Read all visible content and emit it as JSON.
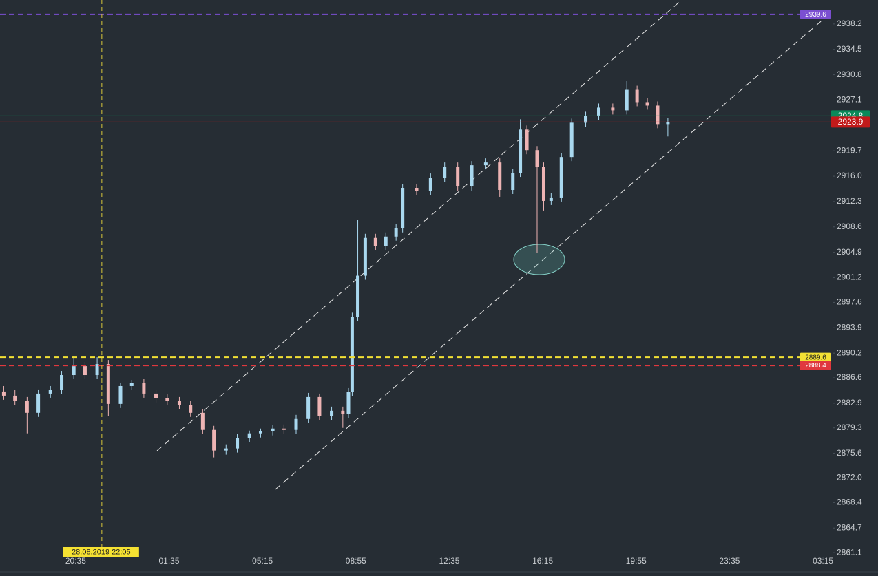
{
  "chart_data": {
    "type": "candlestick",
    "x": [
      -0.77,
      -0.65,
      -0.52,
      -0.4,
      -0.27,
      -0.15,
      -0.02,
      0.1,
      0.23,
      0.35,
      0.48,
      0.6,
      0.73,
      0.86,
      0.98,
      1.11,
      1.23,
      1.36,
      1.48,
      1.61,
      1.73,
      1.86,
      1.98,
      2.11,
      2.23,
      2.36,
      2.49,
      2.61,
      2.74,
      2.86,
      2.92,
      2.96,
      3.02,
      3.1,
      3.21,
      3.32,
      3.43,
      3.5,
      3.65,
      3.8,
      3.95,
      4.09,
      4.24,
      4.39,
      4.54,
      4.68,
      4.76,
      4.83,
      4.94,
      5.01,
      5.09,
      5.2,
      5.31,
      5.46,
      5.6,
      5.75,
      5.9,
      6.01,
      6.12,
      6.23,
      6.34
    ],
    "open": [
      2884.6,
      2884.0,
      2883.2,
      2881.5,
      2884.3,
      2884.8,
      2887.0,
      2888.3,
      2887.0,
      2888.6,
      2882.8,
      2885.4,
      2885.8,
      2884.3,
      2883.6,
      2883.2,
      2882.6,
      2881.5,
      2879.0,
      2876.0,
      2876.3,
      2877.8,
      2878.5,
      2878.8,
      2879.2,
      2879.0,
      2880.6,
      2883.8,
      2881.0,
      2881.8,
      2881.3,
      2884.5,
      2895.5,
      2901.5,
      2907.0,
      2905.8,
      2907.2,
      2908.4,
      2914.3,
      2913.8,
      2915.8,
      2917.4,
      2914.5,
      2917.6,
      2918.0,
      2914.0,
      2916.5,
      2922.8,
      2919.8,
      2917.4,
      2912.4,
      2912.9,
      2918.8,
      2923.8,
      2924.8,
      2926.0,
      2925.6,
      2928.6,
      2926.8,
      2926.3,
      2923.6
    ],
    "high": [
      2885.4,
      2884.8,
      2883.8,
      2884.9,
      2885.4,
      2887.6,
      2889.8,
      2888.9,
      2889.6,
      2889.2,
      2885.9,
      2886.3,
      2886.4,
      2884.9,
      2884.2,
      2883.8,
      2883.2,
      2882.0,
      2879.6,
      2876.9,
      2878.4,
      2878.9,
      2879.2,
      2879.7,
      2879.8,
      2881.2,
      2884.4,
      2884.3,
      2882.4,
      2882.4,
      2885.1,
      2896.1,
      2909.6,
      2907.6,
      2907.6,
      2907.8,
      2909.0,
      2914.9,
      2914.9,
      2916.4,
      2918.0,
      2918.0,
      2918.2,
      2918.6,
      2918.6,
      2917.1,
      2924.3,
      2923.4,
      2920.4,
      2918.0,
      2913.5,
      2919.4,
      2924.4,
      2925.4,
      2926.6,
      2926.6,
      2929.9,
      2929.2,
      2927.4,
      2926.9,
      2924.5
    ],
    "low": [
      2883.4,
      2882.6,
      2878.5,
      2880.9,
      2883.7,
      2884.2,
      2886.4,
      2886.4,
      2886.4,
      2881.0,
      2882.2,
      2884.8,
      2883.7,
      2883.0,
      2882.6,
      2882.0,
      2880.9,
      2878.4,
      2875.0,
      2875.4,
      2875.7,
      2877.2,
      2877.9,
      2878.2,
      2878.4,
      2878.4,
      2880.0,
      2880.4,
      2880.4,
      2879.3,
      2880.7,
      2883.9,
      2894.9,
      2900.9,
      2905.2,
      2905.2,
      2906.6,
      2907.8,
      2913.2,
      2913.2,
      2915.2,
      2913.9,
      2913.9,
      2917.0,
      2913.0,
      2913.4,
      2915.9,
      2919.2,
      2904.8,
      2911.0,
      2911.8,
      2912.3,
      2918.2,
      2923.2,
      2924.2,
      2925.0,
      2925.0,
      2926.2,
      2925.7,
      2923.0,
      2921.8
    ],
    "close": [
      2884.0,
      2883.2,
      2881.5,
      2884.3,
      2884.8,
      2887.0,
      2888.3,
      2887.0,
      2888.6,
      2882.8,
      2885.4,
      2885.8,
      2884.3,
      2883.6,
      2883.2,
      2882.6,
      2881.5,
      2879.0,
      2876.0,
      2876.3,
      2877.8,
      2878.5,
      2878.8,
      2879.2,
      2879.0,
      2880.6,
      2883.8,
      2881.0,
      2881.8,
      2881.3,
      2884.5,
      2895.5,
      2901.5,
      2907.0,
      2905.8,
      2907.2,
      2908.4,
      2914.3,
      2913.8,
      2915.8,
      2917.4,
      2914.5,
      2917.6,
      2918.0,
      2914.0,
      2916.5,
      2922.8,
      2919.8,
      2917.4,
      2912.4,
      2912.9,
      2918.8,
      2923.8,
      2924.8,
      2926.0,
      2925.6,
      2928.6,
      2926.8,
      2926.3,
      2923.6,
      2923.9
    ],
    "up_color": "#a9d8ef",
    "down_color": "#eeb4b4",
    "xlim": [
      -0.81,
      8.11
    ],
    "xticks": [
      {
        "value": 0,
        "label": "20:35"
      },
      {
        "value": 1,
        "label": "01:35"
      },
      {
        "value": 2,
        "label": "05:15"
      },
      {
        "value": 3,
        "label": "08:55"
      },
      {
        "value": 4,
        "label": "12:35"
      },
      {
        "value": 5,
        "label": "16:15"
      },
      {
        "value": 6,
        "label": "19:55"
      },
      {
        "value": 7,
        "label": "23:35"
      },
      {
        "value": 8,
        "label": "03:15"
      }
    ],
    "ylim": [
      2858.7,
      2941.7
    ],
    "yticks": [
      2938.2,
      2934.5,
      2930.8,
      2927.1,
      2919.7,
      {
        "value": 2916.0,
        "label": "2916.0"
      },
      2912.3,
      2908.6,
      2904.9,
      2901.2,
      2897.6,
      2893.9,
      2890.2,
      2886.6,
      2882.9,
      2879.3,
      2875.6,
      {
        "value": 2872.0,
        "label": "2872.0"
      },
      2868.4,
      2864.7,
      2861.1
    ],
    "price_lines": [
      {
        "value": 2939.6,
        "color": "#7b4fd1",
        "style": "dashed"
      },
      {
        "value": 2924.8,
        "color": "#0a8a5a",
        "style": "solid"
      },
      {
        "value": 2923.9,
        "color": "#c21a1a",
        "style": "solid"
      },
      {
        "value": 2889.6,
        "color": "#f2e034",
        "style": "dashed"
      },
      {
        "value": 2888.4,
        "color": "#e0383e",
        "style": "dashed"
      }
    ],
    "crosshair": {
      "x": 0.28,
      "label": "28.08.2019 22:05",
      "color": "#d8c83a"
    }
  }
}
